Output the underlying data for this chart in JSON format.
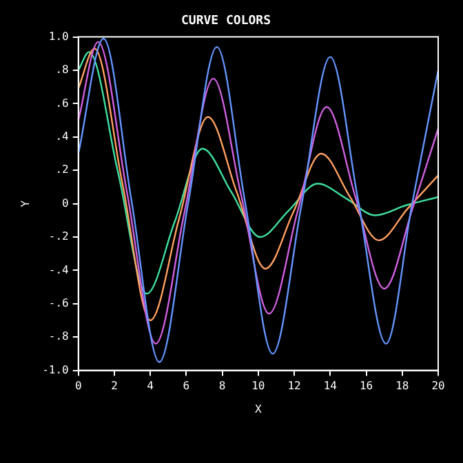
{
  "chart_data": {
    "type": "line",
    "title": "CURVE COLORS",
    "xlabel": "X",
    "ylabel": "Y",
    "xlim": [
      0,
      20
    ],
    "xticks": [
      0,
      2,
      4,
      6,
      8,
      10,
      12,
      14,
      16,
      18,
      20
    ],
    "ylim": [
      -1,
      1
    ],
    "yticks": [
      {
        "value": -1,
        "label": "-1.0"
      },
      {
        "value": -0.8,
        "label": "-.8"
      },
      {
        "value": -0.6,
        "label": "-.6"
      },
      {
        "value": -0.4,
        "label": "-.4"
      },
      {
        "value": -0.2,
        "label": "-.2"
      },
      0,
      {
        "value": 0.2,
        "label": ".2"
      },
      {
        "value": 0.4,
        "label": ".4"
      },
      {
        "value": 0.6,
        "label": ".6"
      },
      {
        "value": 0.8,
        "label": ".8"
      },
      {
        "value": 1,
        "label": "1.0"
      }
    ],
    "grid": false,
    "legend": false,
    "series": [
      {
        "color": "#6495ff",
        "x": [
          0,
          1.4,
          2.95,
          4.5,
          6.1,
          7.7,
          9.25,
          10.8,
          12.4,
          14.0,
          15.55,
          17.1,
          18.55,
          20
        ],
        "values": [
          0.3,
          0.99,
          0.02,
          -0.95,
          0.0,
          0.94,
          0.02,
          -0.9,
          -0.01,
          0.88,
          0.02,
          -0.84,
          0.0,
          0.8
        ]
      },
      {
        "color": "#d060e0",
        "x": [
          0,
          1.1,
          2.7,
          4.3,
          5.9,
          7.5,
          9.05,
          10.6,
          12.2,
          13.8,
          15.4,
          17.0,
          18.6,
          20
        ],
        "values": [
          0.5,
          0.97,
          0.07,
          -0.84,
          -0.05,
          0.75,
          0.05,
          -0.66,
          -0.04,
          0.58,
          0.04,
          -0.51,
          -0.02,
          0.45
        ]
      },
      {
        "color": "#ffa060",
        "x": [
          0,
          0.9,
          2.45,
          4.0,
          5.6,
          7.2,
          8.8,
          10.4,
          11.95,
          13.5,
          15.1,
          16.7,
          18.3,
          20
        ],
        "values": [
          0.69,
          0.93,
          0.12,
          -0.7,
          -0.09,
          0.52,
          0.07,
          -0.39,
          -0.05,
          0.3,
          0.04,
          -0.22,
          -0.03,
          0.17
        ]
      },
      {
        "color": "#40e0a0",
        "x": [
          0,
          0.6,
          2.2,
          3.8,
          5.35,
          6.9,
          8.5,
          10.1,
          11.7,
          13.3,
          14.9,
          16.5,
          18.2,
          20
        ],
        "values": [
          0.8,
          0.91,
          0.19,
          -0.54,
          -0.11,
          0.33,
          0.07,
          -0.2,
          -0.04,
          0.12,
          0.03,
          -0.07,
          -0.01,
          0.04
        ]
      }
    ]
  }
}
